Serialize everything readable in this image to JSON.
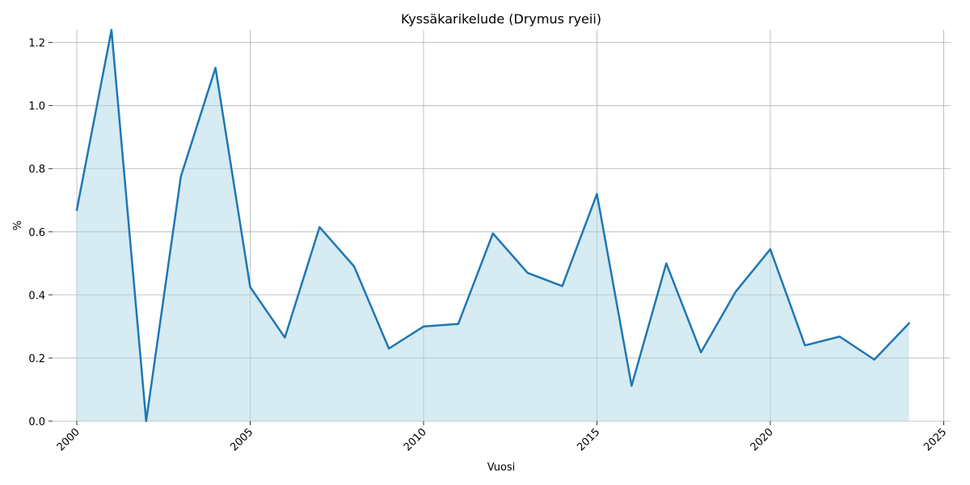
{
  "chart_data": {
    "type": "area",
    "title": "Kyssäkarikelude (Drymus ryeii)",
    "xlabel": "Vuosi",
    "ylabel": "%",
    "xlim": [
      1999.3,
      2025.2
    ],
    "ylim": [
      0,
      1.24
    ],
    "x_ticks": [
      2000,
      2005,
      2010,
      2015,
      2020,
      2025
    ],
    "y_ticks": [
      0.0,
      0.2,
      0.4,
      0.6,
      0.8,
      1.0,
      1.2
    ],
    "y_tick_labels": [
      "0.0",
      "0.2",
      "0.4",
      "0.6",
      "0.8",
      "1.0",
      "1.2"
    ],
    "grid": true,
    "line_color": "#1f77b4",
    "fill_color": "#add8e6",
    "series": [
      {
        "x": [
          2000,
          2001,
          2002,
          2003,
          2004,
          2005,
          2006,
          2007,
          2008,
          2009,
          2010,
          2011,
          2012,
          2013,
          2014,
          2015,
          2016,
          2017,
          2018,
          2019,
          2020,
          2021,
          2022,
          2023,
          2024
        ],
        "values": [
          0.67,
          1.24,
          0.0,
          0.775,
          1.12,
          0.425,
          0.265,
          0.615,
          0.49,
          0.23,
          0.3,
          0.308,
          0.595,
          0.47,
          0.428,
          0.72,
          0.112,
          0.5,
          0.218,
          0.41,
          0.545,
          0.24,
          0.268,
          0.195,
          0.31
        ]
      }
    ]
  }
}
